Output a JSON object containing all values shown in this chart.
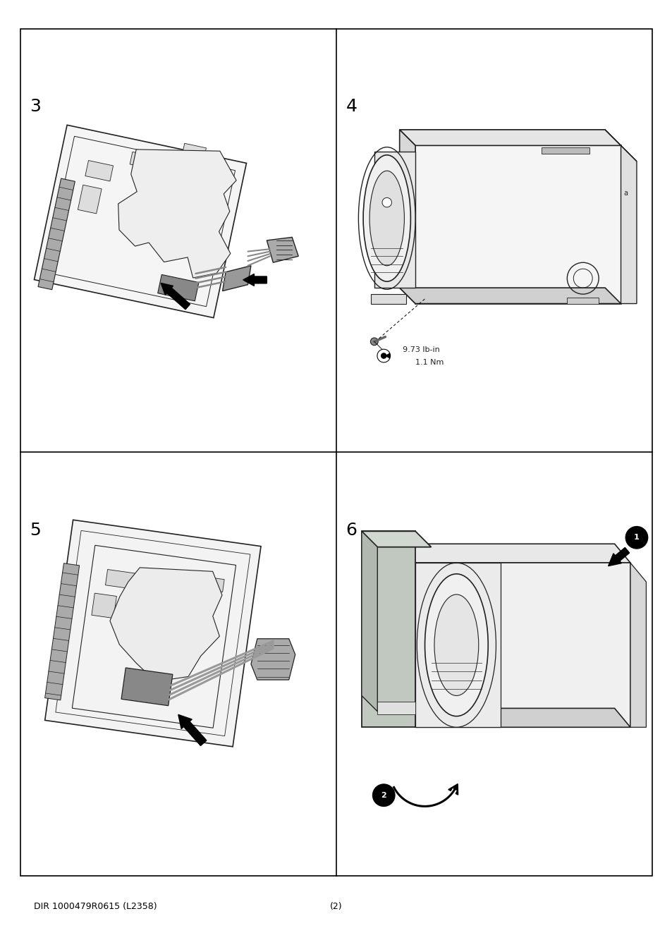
{
  "background_color": "#ffffff",
  "border_color": "#000000",
  "footer_left": "DIR 1000479R0615 (L2358)",
  "footer_center": "(2)",
  "torque_line1": "9.73 lb-in",
  "torque_line2": "1.1 Nm",
  "text_color": "#000000",
  "panel_number_fontsize": 18,
  "footer_fontsize": 9,
  "light_gray": "#e8e8e8",
  "mid_gray": "#c8c8c8",
  "dark_gray": "#888888",
  "line_gray": "#555555",
  "edge_color": "#222222"
}
